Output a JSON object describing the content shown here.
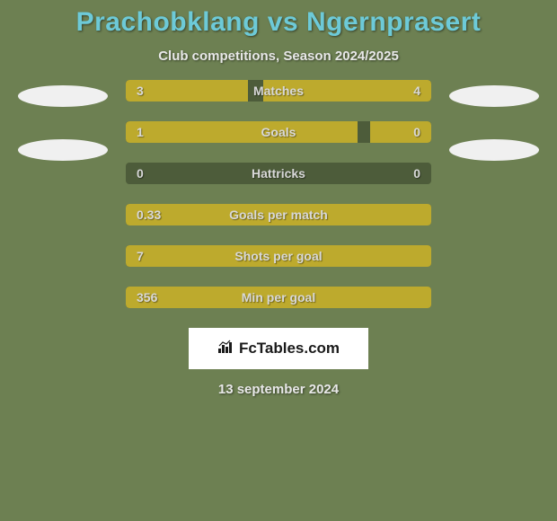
{
  "colors": {
    "background": "#6d8052",
    "title_color": "#6dcad8",
    "subtitle_color": "#e8e8e8",
    "bar_bg": "#4d5c3a",
    "bar_fill": "#bdaa2d",
    "bar_text": "#d8d8d8",
    "logo_white": "#f0f0f0",
    "footer_bg": "#ffffff",
    "footer_text": "#1a1a1a",
    "date_color": "#e8e8e8"
  },
  "title": "Prachobklang vs Ngernprasert",
  "subtitle": "Club competitions, Season 2024/2025",
  "team_logos": {
    "left": [
      {
        "color": "#f0f0f0"
      },
      {
        "color": "#f0f0f0"
      }
    ],
    "right": [
      {
        "color": "#f0f0f0"
      },
      {
        "color": "#f0f0f0"
      }
    ]
  },
  "bars": [
    {
      "label": "Matches",
      "left_value": "3",
      "right_value": "4",
      "left_fill_pct": 40,
      "right_fill_pct": 55
    },
    {
      "label": "Goals",
      "left_value": "1",
      "right_value": "0",
      "left_fill_pct": 76,
      "right_fill_pct": 20
    },
    {
      "label": "Hattricks",
      "left_value": "0",
      "right_value": "0",
      "left_fill_pct": 0,
      "right_fill_pct": 0
    },
    {
      "label": "Goals per match",
      "left_value": "0.33",
      "right_value": "",
      "left_fill_pct": 100,
      "right_fill_pct": 0
    },
    {
      "label": "Shots per goal",
      "left_value": "7",
      "right_value": "",
      "left_fill_pct": 100,
      "right_fill_pct": 0
    },
    {
      "label": "Min per goal",
      "left_value": "356",
      "right_value": "",
      "left_fill_pct": 100,
      "right_fill_pct": 0
    }
  ],
  "footer": {
    "brand": "FcTables.com",
    "date": "13 september 2024"
  },
  "fonts": {
    "title_size": 30,
    "subtitle_size": 15,
    "bar_label_size": 14,
    "footer_brand_size": 17,
    "date_size": 15
  }
}
